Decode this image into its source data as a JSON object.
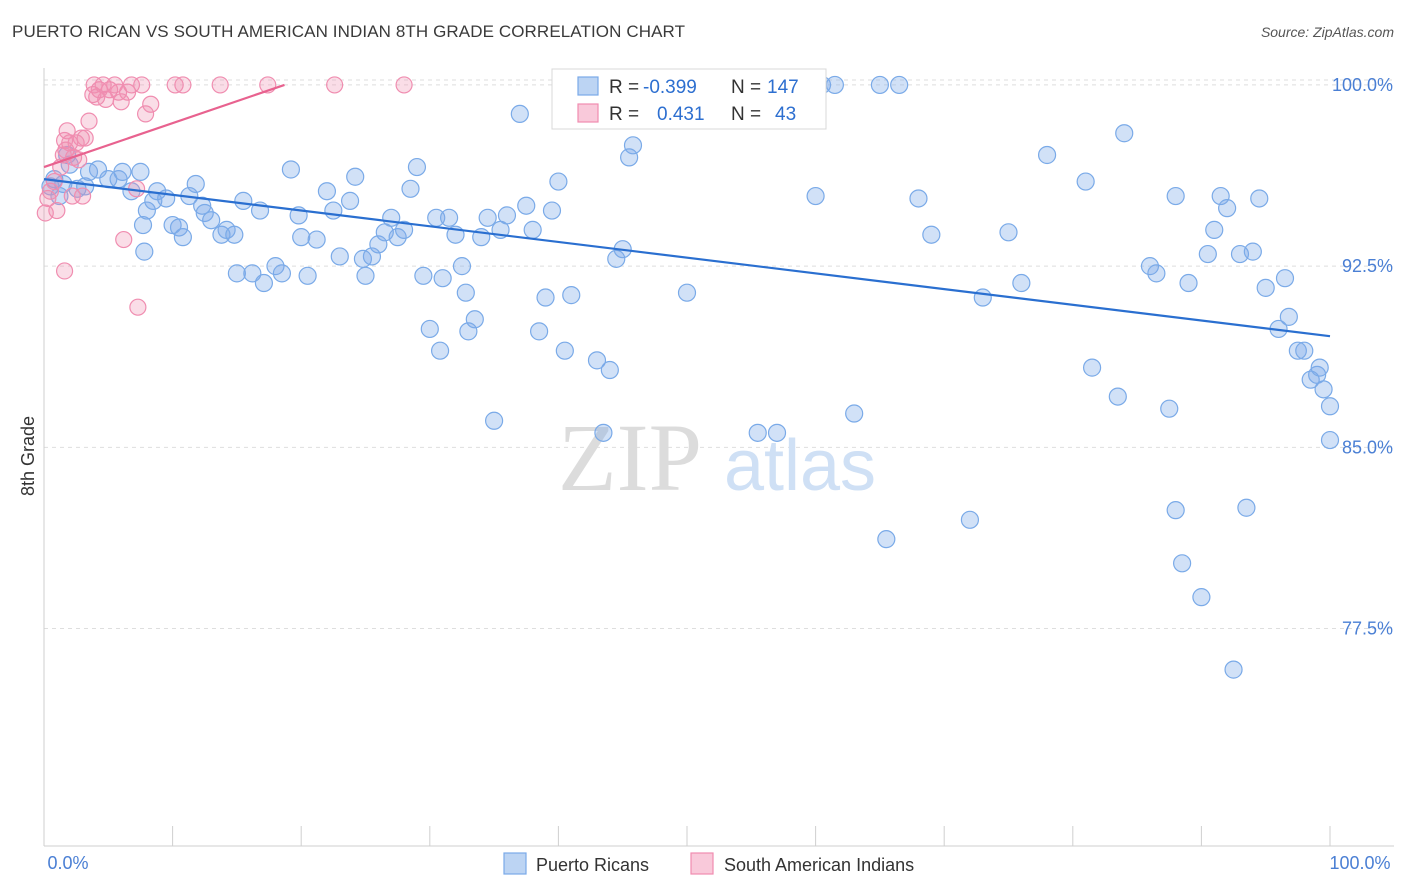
{
  "title": "PUERTO RICAN VS SOUTH AMERICAN INDIAN 8TH GRADE CORRELATION CHART",
  "source": "Source: ZipAtlas.com",
  "watermark": {
    "zip": "ZIP",
    "atlas": "atlas"
  },
  "colors": {
    "blue": "#7aaae8",
    "blue_fill": "rgba(122,170,232,0.35)",
    "blue_line": "#2a6fd0",
    "pink": "#f08db0",
    "pink_fill": "rgba(240,141,176,0.3)",
    "pink_line": "#e8628f",
    "value_text": "#2d6fd0",
    "grid": "#dedede"
  },
  "stats": {
    "blue": {
      "r_label": "R =",
      "r_value": "-0.399",
      "n_label": "N =",
      "n_value": "147"
    },
    "pink": {
      "r_label": "R =",
      "r_value": "0.431",
      "n_label": "N =",
      "n_value": "43"
    }
  },
  "chart_data": {
    "type": "scatter",
    "xlabel": "",
    "ylabel": "8th Grade",
    "x_tick_labels": [
      "0.0%",
      "100.0%"
    ],
    "y_tick_labels": [
      "100.0%",
      "92.5%",
      "85.0%",
      "77.5%"
    ],
    "xlim": [
      0,
      100
    ],
    "ylim": [
      68.5,
      100.7
    ],
    "y_ticks": [
      100.0,
      92.5,
      85.0,
      77.5
    ],
    "grid": true,
    "legend_position": "bottom-center",
    "series": [
      {
        "name": "Puerto Ricans",
        "color": "#7aaae8",
        "trend": {
          "x": [
            0,
            100
          ],
          "y": [
            96.1,
            89.6
          ]
        },
        "points": [
          [
            0.5,
            95.8
          ],
          [
            0.8,
            96.1
          ],
          [
            1.2,
            95.4
          ],
          [
            1.5,
            95.9
          ],
          [
            1.8,
            97.1
          ],
          [
            2.0,
            96.7
          ],
          [
            2.6,
            95.7
          ],
          [
            3.2,
            95.8
          ],
          [
            3.5,
            96.4
          ],
          [
            4.2,
            96.5
          ],
          [
            5.0,
            96.1
          ],
          [
            5.8,
            96.1
          ],
          [
            6.1,
            96.4
          ],
          [
            6.8,
            95.6
          ],
          [
            7.5,
            96.4
          ],
          [
            7.7,
            94.2
          ],
          [
            7.8,
            93.1
          ],
          [
            8.0,
            94.8
          ],
          [
            8.5,
            95.2
          ],
          [
            8.8,
            95.6
          ],
          [
            9.5,
            95.3
          ],
          [
            10.0,
            94.2
          ],
          [
            10.5,
            94.1
          ],
          [
            10.8,
            93.7
          ],
          [
            11.3,
            95.4
          ],
          [
            11.8,
            95.9
          ],
          [
            12.3,
            95.0
          ],
          [
            12.5,
            94.7
          ],
          [
            13.0,
            94.4
          ],
          [
            13.8,
            93.8
          ],
          [
            14.2,
            94.0
          ],
          [
            14.8,
            93.8
          ],
          [
            15.0,
            92.2
          ],
          [
            15.5,
            95.2
          ],
          [
            16.2,
            92.2
          ],
          [
            16.8,
            94.8
          ],
          [
            17.1,
            91.8
          ],
          [
            18.0,
            92.5
          ],
          [
            18.5,
            92.2
          ],
          [
            19.2,
            96.5
          ],
          [
            19.8,
            94.6
          ],
          [
            20.0,
            93.7
          ],
          [
            20.5,
            92.1
          ],
          [
            21.2,
            93.6
          ],
          [
            22.0,
            95.6
          ],
          [
            22.5,
            94.8
          ],
          [
            23.0,
            92.9
          ],
          [
            23.8,
            95.2
          ],
          [
            24.2,
            96.2
          ],
          [
            24.8,
            92.8
          ],
          [
            25.0,
            92.1
          ],
          [
            25.5,
            92.9
          ],
          [
            26.0,
            93.4
          ],
          [
            26.5,
            93.9
          ],
          [
            27.0,
            94.5
          ],
          [
            27.5,
            93.7
          ],
          [
            28.0,
            94.0
          ],
          [
            28.5,
            95.7
          ],
          [
            29.0,
            96.6
          ],
          [
            29.5,
            92.1
          ],
          [
            30.0,
            89.9
          ],
          [
            30.5,
            94.5
          ],
          [
            30.8,
            89.0
          ],
          [
            31.0,
            92.0
          ],
          [
            31.5,
            94.5
          ],
          [
            32.0,
            93.8
          ],
          [
            32.5,
            92.5
          ],
          [
            32.8,
            91.4
          ],
          [
            33.0,
            89.8
          ],
          [
            33.5,
            90.3
          ],
          [
            34.0,
            93.7
          ],
          [
            34.5,
            94.5
          ],
          [
            35.0,
            86.1
          ],
          [
            35.5,
            94.0
          ],
          [
            36.0,
            94.6
          ],
          [
            37.0,
            98.8
          ],
          [
            37.5,
            95.0
          ],
          [
            38.0,
            94.0
          ],
          [
            38.5,
            89.8
          ],
          [
            39.0,
            91.2
          ],
          [
            39.5,
            94.8
          ],
          [
            40.0,
            96.0
          ],
          [
            40.5,
            89.0
          ],
          [
            41.0,
            91.3
          ],
          [
            43.0,
            88.6
          ],
          [
            43.5,
            85.6
          ],
          [
            44.0,
            88.2
          ],
          [
            44.5,
            92.8
          ],
          [
            45.0,
            93.2
          ],
          [
            45.5,
            97.0
          ],
          [
            45.8,
            97.5
          ],
          [
            47.0,
            100.0
          ],
          [
            48.5,
            100.0
          ],
          [
            50.0,
            91.4
          ],
          [
            50.5,
            100.0
          ],
          [
            51.0,
            100.0
          ],
          [
            52.0,
            100.0
          ],
          [
            53.5,
            100.0
          ],
          [
            55.5,
            85.6
          ],
          [
            57.0,
            85.6
          ],
          [
            57.5,
            100.0
          ],
          [
            60.0,
            95.4
          ],
          [
            60.5,
            100.0
          ],
          [
            61.5,
            100.0
          ],
          [
            63.0,
            86.4
          ],
          [
            65.0,
            100.0
          ],
          [
            65.5,
            81.2
          ],
          [
            66.5,
            100.0
          ],
          [
            68.0,
            95.3
          ],
          [
            69.0,
            93.8
          ],
          [
            72.0,
            82.0
          ],
          [
            73.0,
            91.2
          ],
          [
            75.0,
            93.9
          ],
          [
            76.0,
            91.8
          ],
          [
            78.0,
            97.1
          ],
          [
            81.0,
            96.0
          ],
          [
            81.5,
            88.3
          ],
          [
            83.5,
            87.1
          ],
          [
            84.0,
            98.0
          ],
          [
            86.0,
            92.5
          ],
          [
            86.5,
            92.2
          ],
          [
            87.5,
            86.6
          ],
          [
            88.0,
            95.4
          ],
          [
            88.0,
            82.4
          ],
          [
            88.5,
            80.2
          ],
          [
            89.0,
            91.8
          ],
          [
            90.0,
            78.8
          ],
          [
            90.5,
            93.0
          ],
          [
            91.0,
            94.0
          ],
          [
            91.5,
            95.4
          ],
          [
            92.0,
            94.9
          ],
          [
            92.5,
            75.8
          ],
          [
            93.0,
            93.0
          ],
          [
            93.5,
            82.5
          ],
          [
            94.0,
            93.1
          ],
          [
            94.5,
            95.3
          ],
          [
            95.0,
            91.6
          ],
          [
            96.0,
            89.9
          ],
          [
            96.5,
            92.0
          ],
          [
            96.8,
            90.4
          ],
          [
            97.5,
            89.0
          ],
          [
            98.0,
            89.0
          ],
          [
            98.5,
            87.8
          ],
          [
            99.0,
            88.0
          ],
          [
            99.2,
            88.3
          ],
          [
            99.5,
            87.4
          ],
          [
            100.0,
            86.7
          ],
          [
            100.0,
            85.3
          ]
        ]
      },
      {
        "name": "South American Indians",
        "color": "#f08db0",
        "trend": {
          "x": [
            0,
            18.7
          ],
          "y": [
            96.6,
            100.0
          ]
        },
        "points": [
          [
            0.1,
            94.7
          ],
          [
            0.3,
            95.3
          ],
          [
            0.5,
            95.6
          ],
          [
            0.8,
            96.0
          ],
          [
            1.0,
            94.8
          ],
          [
            1.3,
            96.6
          ],
          [
            1.5,
            97.1
          ],
          [
            1.6,
            97.7
          ],
          [
            1.7,
            97.3
          ],
          [
            1.8,
            98.1
          ],
          [
            2.0,
            97.6
          ],
          [
            2.2,
            95.4
          ],
          [
            2.3,
            97.0
          ],
          [
            2.5,
            97.6
          ],
          [
            2.7,
            96.9
          ],
          [
            2.9,
            97.8
          ],
          [
            3.0,
            95.4
          ],
          [
            3.2,
            97.8
          ],
          [
            3.5,
            98.5
          ],
          [
            3.8,
            99.6
          ],
          [
            3.9,
            100.0
          ],
          [
            4.1,
            99.5
          ],
          [
            4.3,
            99.8
          ],
          [
            4.6,
            100.0
          ],
          [
            4.8,
            99.4
          ],
          [
            5.1,
            99.8
          ],
          [
            5.5,
            100.0
          ],
          [
            5.8,
            99.7
          ],
          [
            6.0,
            99.3
          ],
          [
            6.2,
            93.6
          ],
          [
            6.5,
            99.7
          ],
          [
            6.8,
            100.0
          ],
          [
            7.2,
            95.7
          ],
          [
            7.6,
            100.0
          ],
          [
            7.9,
            98.8
          ],
          [
            8.3,
            99.2
          ],
          [
            10.2,
            100.0
          ],
          [
            10.8,
            100.0
          ],
          [
            13.7,
            100.0
          ],
          [
            17.4,
            100.0
          ],
          [
            22.6,
            100.0
          ],
          [
            28.0,
            100.0
          ],
          [
            1.6,
            92.3
          ],
          [
            7.3,
            90.8
          ]
        ]
      }
    ]
  },
  "legend": [
    "Puerto Ricans",
    "South American Indians"
  ]
}
